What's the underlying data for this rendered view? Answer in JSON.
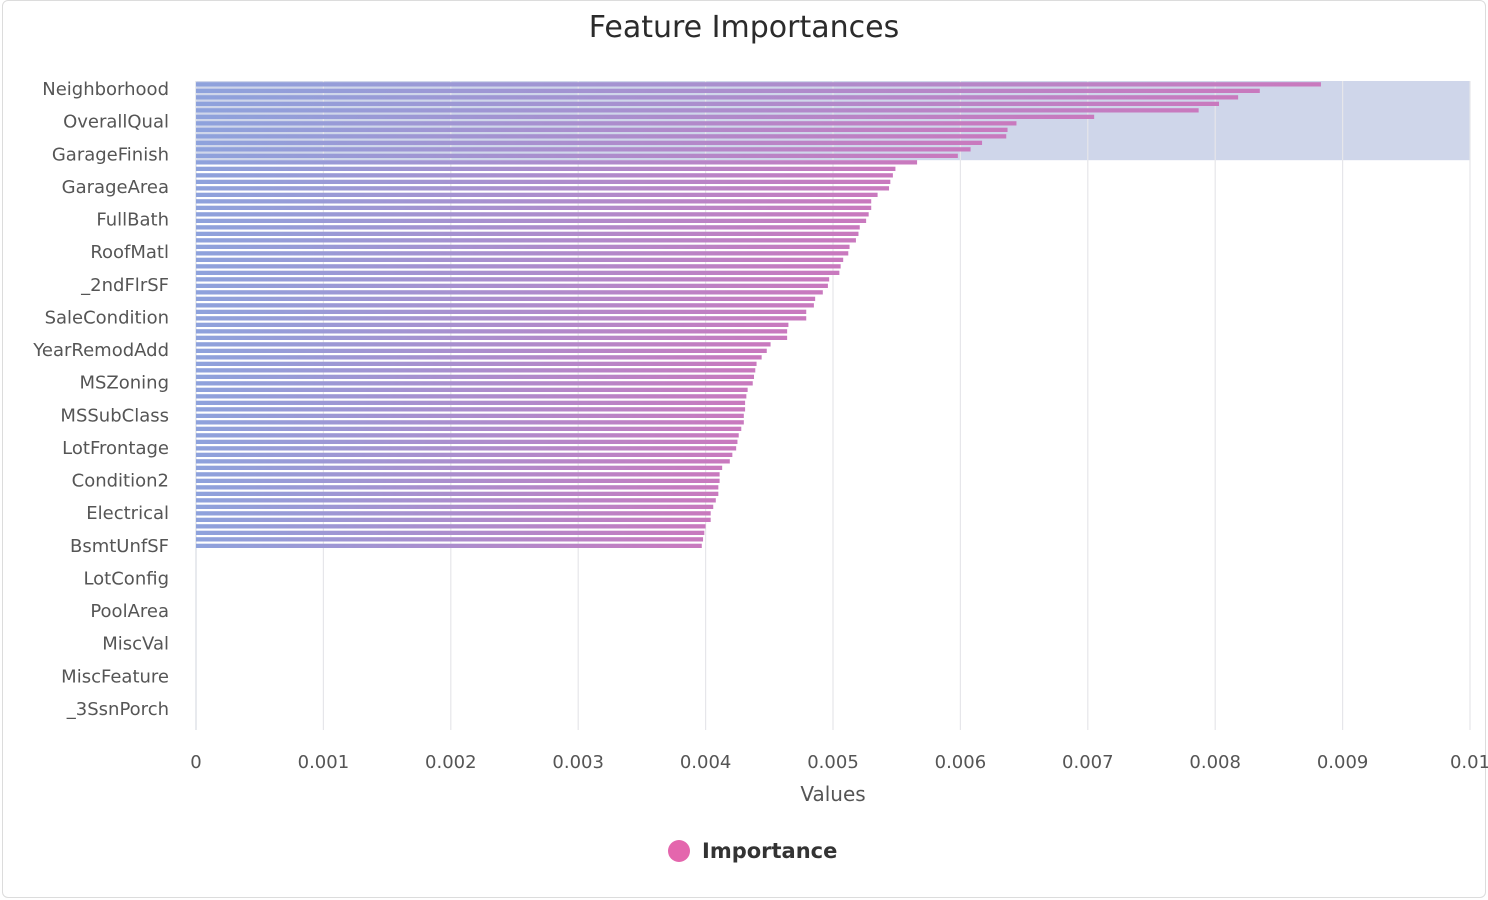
{
  "chart_data": {
    "type": "bar",
    "orientation": "horizontal",
    "title": "Feature Importances",
    "xlabel": "Values",
    "ylabel": "",
    "xlim": [
      0,
      0.01
    ],
    "x_ticks": [
      "0",
      "0.001",
      "0.002",
      "0.003",
      "0.004",
      "0.005",
      "0.006",
      "0.007",
      "0.008",
      "0.009",
      "0.01"
    ],
    "category_labels": [
      "Neighborhood",
      "OverallQual",
      "GarageFinish",
      "GarageArea",
      "FullBath",
      "RoofMatl",
      "_2ndFlrSF",
      "SaleCondition",
      "YearRemodAdd",
      "MSZoning",
      "MSSubClass",
      "LotFrontage",
      "Condition2",
      "Electrical",
      "BsmtUnfSF",
      "LotConfig",
      "PoolArea",
      "MiscVal",
      "MiscFeature",
      "_3SsnPorch"
    ],
    "bar_count": 76,
    "values": [
      0.00883,
      0.00835,
      0.00818,
      0.00803,
      0.00787,
      0.00705,
      0.00644,
      0.00637,
      0.00636,
      0.00617,
      0.00608,
      0.00598,
      0.00566,
      0.00549,
      0.00547,
      0.00545,
      0.00544,
      0.00535,
      0.0053,
      0.0053,
      0.00528,
      0.00526,
      0.00521,
      0.0052,
      0.00518,
      0.00513,
      0.00512,
      0.00508,
      0.00506,
      0.00505,
      0.00497,
      0.00496,
      0.00492,
      0.00486,
      0.00485,
      0.00479,
      0.00479,
      0.00465,
      0.00464,
      0.00464,
      0.00451,
      0.00448,
      0.00444,
      0.0044,
      0.00439,
      0.00438,
      0.00437,
      0.00433,
      0.00432,
      0.00431,
      0.00431,
      0.0043,
      0.0043,
      0.00428,
      0.00426,
      0.00425,
      0.00424,
      0.00421,
      0.00419,
      0.00413,
      0.00411,
      0.00411,
      0.0041,
      0.0041,
      0.00408,
      0.00406,
      0.00404,
      0.00404,
      0.004,
      0.00399,
      0.00398,
      0.00397,
      0,
      0,
      0,
      0
    ],
    "highlight_range": {
      "from_bar": 0,
      "to_bar": 11
    },
    "legend": {
      "position": "bottom-center",
      "label": "Importance"
    },
    "grid": true,
    "colors": {
      "bar_start": "#8ea2dc",
      "bar_end": "#c979be",
      "highlight": "#cfd6ea",
      "grid": "#e6e6ea",
      "legend_marker": "#e466ad"
    }
  }
}
